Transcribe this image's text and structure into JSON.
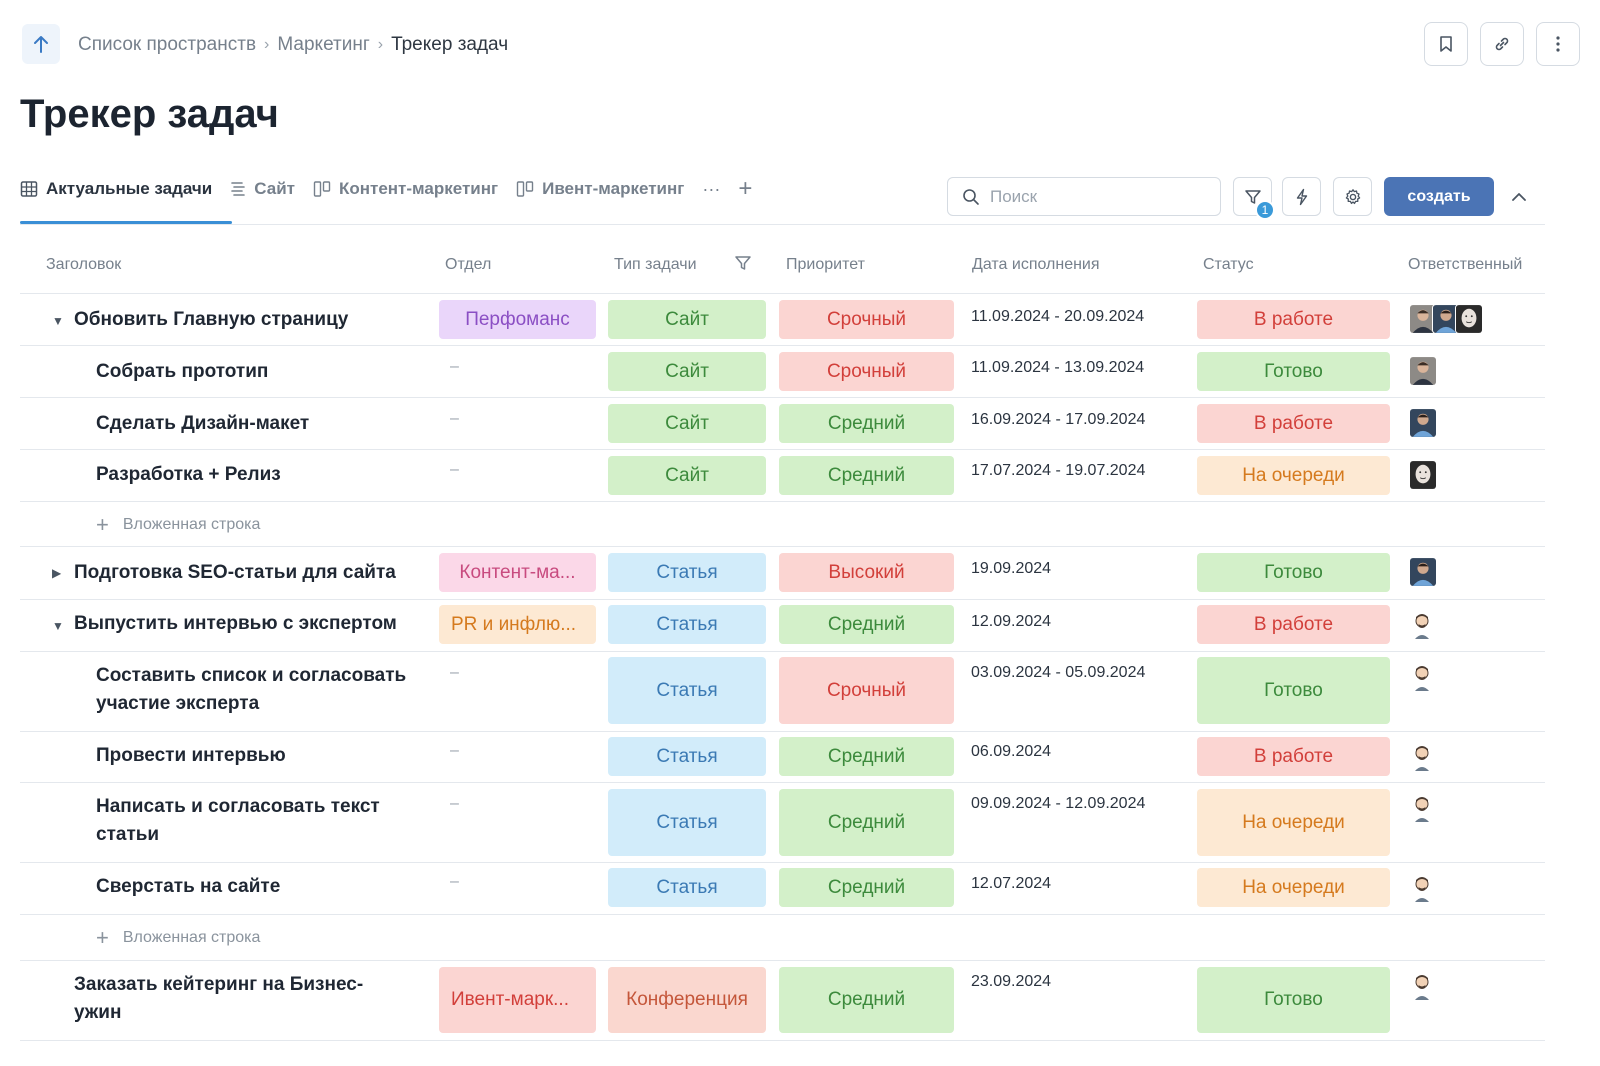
{
  "breadcrumb": {
    "items": [
      "Список пространств",
      "Маркетинг"
    ],
    "current": "Трекер задач"
  },
  "page_title": "Трекер задач",
  "tabs": [
    {
      "label": "Актуальные задачи",
      "icon": "table-icon",
      "active": true
    },
    {
      "label": "Сайт",
      "icon": "list-icon"
    },
    {
      "label": "Контент-маркетинг",
      "icon": "kanban-icon"
    },
    {
      "label": "Ивент-маркетинг",
      "icon": "kanban-icon"
    }
  ],
  "tabs_more": "···",
  "tabs_add": "+",
  "search": {
    "placeholder": "Поиск"
  },
  "filter_badge": "1",
  "create_label": "создать",
  "columns": {
    "title": "Заголовок",
    "department": "Отдел",
    "type": "Тип задачи",
    "priority": "Приоритет",
    "due": "Дата исполнения",
    "status": "Статус",
    "owner": "Ответственный"
  },
  "rows": [
    {
      "title": "Обновить Главную страницу",
      "department": "Перфоманс",
      "type": "Сайт",
      "priority": "Срочный",
      "due": "11.09.2024 - 20.09.2024",
      "status": "В работе"
    },
    {
      "title": "Собрать прототип",
      "department": "–",
      "type": "Сайт",
      "priority": "Срочный",
      "due": "11.09.2024 - 13.09.2024",
      "status": "Готово"
    },
    {
      "title": "Сделать Дизайн-макет",
      "department": "–",
      "type": "Сайт",
      "priority": "Средний",
      "due": "16.09.2024 - 17.09.2024",
      "status": "В работе"
    },
    {
      "title": "Разработка + Релиз",
      "department": "–",
      "type": "Сайт",
      "priority": "Средний",
      "due": "17.07.2024 - 19.07.2024",
      "status": "На очереди"
    },
    {
      "add_label": "Вложенная строка"
    },
    {
      "title": "Подготовка SEO-статьи для сайта",
      "department": "Контент-ма...",
      "type": "Статья",
      "priority": "Высокий",
      "due": "19.09.2024",
      "status": "Готово"
    },
    {
      "title": "Выпустить интервью с экспертом",
      "department": "PR и инфлю...",
      "type": "Статья",
      "priority": "Средний",
      "due": "12.09.2024",
      "status": "В работе"
    },
    {
      "title_line1": "Составить список и согласовать",
      "title_line2": "участие эксперта",
      "department": "–",
      "type": "Статья",
      "priority": "Срочный",
      "due": "03.09.2024 - 05.09.2024",
      "status": "Готово"
    },
    {
      "title": "Провести интервью",
      "department": "–",
      "type": "Статья",
      "priority": "Средний",
      "due": "06.09.2024",
      "status": "В работе"
    },
    {
      "title_line1": "Написать и согласовать текст",
      "title_line2": "статьи",
      "department": "–",
      "type": "Статья",
      "priority": "Средний",
      "due": "09.09.2024 - 12.09.2024",
      "status": "На очереди"
    },
    {
      "title": "Сверстать на сайте",
      "department": "–",
      "type": "Статья",
      "priority": "Средний",
      "due": "12.07.2024",
      "status": "На очереди"
    },
    {
      "add_label": "Вложенная строка"
    },
    {
      "title_line1": "Заказать кейтеринг на Бизнес-",
      "title_line2": "ужин",
      "department": "Ивент-марк...",
      "type": "Конференция",
      "priority": "Средний",
      "due": "23.09.2024",
      "status": "Готово"
    }
  ],
  "colors": {
    "accent": "#4b74b5",
    "tab_underline": "#3a8fd6"
  }
}
